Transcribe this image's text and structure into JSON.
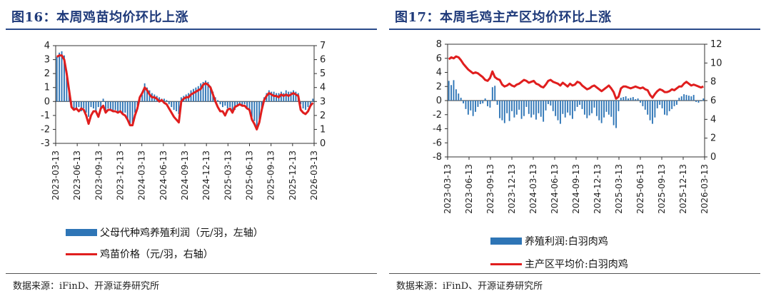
{
  "colors": {
    "title": "#1f3a7a",
    "bar": "#2e75b6",
    "line": "#e01e1e",
    "axis": "#333333"
  },
  "panels": [
    {
      "title": "图16：本周鸡苗均价环比上涨",
      "source": "数据来源：iFinD、开源证券研究所",
      "legend": [
        {
          "label": "父母代种鸡养殖利润（元/羽，左轴）",
          "kind": "bar"
        },
        {
          "label": "鸡苗价格（元/羽，右轴）",
          "kind": "line"
        }
      ]
    },
    {
      "title": "图17：本周毛鸡主产区均价环比上涨",
      "source": "数据来源：iFinD、开源证券研究所",
      "legend": [
        {
          "label": "养殖利润:白羽肉鸡",
          "kind": "bar"
        },
        {
          "label": "主产区平均价:白羽肉鸡",
          "kind": "line"
        }
      ]
    }
  ],
  "chart_data": [
    {
      "type": "bar+line",
      "title": "本周鸡苗均价环比上涨",
      "x_labels": [
        "2023-03-13",
        "2023-06-13",
        "2023-09-13",
        "2023-12-13",
        "2024-03-13",
        "2024-06-13",
        "2024-09-13",
        "2024-12-13",
        "2025-03-13",
        "2025-06-13",
        "2025-09-13",
        "2025-12-13",
        "2026-03-13"
      ],
      "left_axis": {
        "ylim": [
          -3,
          4
        ],
        "ticks": [
          -3,
          -2,
          -1,
          0,
          1,
          2,
          3,
          4
        ]
      },
      "right_axis": {
        "ylim": [
          0,
          7
        ],
        "ticks": [
          0,
          1,
          2,
          3,
          4,
          5,
          6,
          7
        ]
      },
      "series": [
        {
          "name": "父母代种鸡养殖利润（元/羽，左轴）",
          "kind": "bar",
          "axis": "left",
          "values": [
            3.2,
            3.5,
            3.6,
            3.3,
            2.2,
            0.8,
            -0.3,
            -0.5,
            -0.6,
            -0.4,
            -0.7,
            -0.5,
            -0.8,
            -1.1,
            -0.4,
            -0.5,
            -0.7,
            -0.4,
            -0.6,
            0.2,
            -0.8,
            -0.5,
            -0.6,
            -0.7,
            -0.6,
            -0.8,
            -0.7,
            -0.9,
            -0.8,
            -1.3,
            -1.6,
            -1.6,
            -0.8,
            -0.3,
            0.3,
            0.5,
            1.3,
            1.0,
            0.8,
            0.6,
            0.5,
            0.4,
            0.3,
            0.2,
            0.2,
            0.1,
            -0.2,
            -0.4,
            -0.6,
            -0.7,
            -0.9,
            0.3,
            0.4,
            0.5,
            0.6,
            0.8,
            0.9,
            1.0,
            1.1,
            1.3,
            1.4,
            1.5,
            1.4,
            1.1,
            0.7,
            0.3,
            0.1,
            -0.2,
            -0.4,
            -0.3,
            -0.5,
            -0.4,
            -0.8,
            -0.6,
            -0.3,
            -0.2,
            -0.3,
            -0.2,
            -0.5,
            -0.6,
            -1.1,
            -1.4,
            -1.9,
            -1.3,
            -0.5,
            0.3,
            0.6,
            0.8,
            0.7,
            0.7,
            0.6,
            0.6,
            0.7,
            0.6,
            0.8,
            0.7,
            0.7,
            0.8,
            0.7,
            0.6,
            -0.2,
            -0.5,
            -0.6,
            -0.4,
            -0.3,
            0.2
          ]
        },
        {
          "name": "鸡苗价格（元/羽，右轴）",
          "kind": "line",
          "axis": "right",
          "values": [
            6.2,
            6.3,
            6.3,
            6.0,
            5.0,
            3.8,
            2.6,
            2.4,
            2.5,
            2.3,
            2.5,
            2.4,
            2.0,
            1.4,
            2.0,
            2.3,
            2.3,
            1.9,
            2.5,
            2.7,
            2.2,
            2.4,
            2.4,
            2.3,
            2.3,
            2.2,
            2.3,
            2.1,
            2.0,
            1.7,
            1.3,
            1.3,
            2.0,
            2.5,
            3.3,
            3.6,
            4.0,
            3.8,
            3.5,
            3.3,
            3.3,
            3.2,
            3.0,
            3.1,
            2.9,
            2.8,
            2.5,
            2.2,
            1.9,
            1.7,
            1.5,
            3.0,
            3.2,
            3.3,
            3.3,
            3.5,
            3.6,
            3.7,
            3.8,
            3.9,
            4.2,
            4.3,
            4.2,
            4.0,
            3.5,
            3.0,
            2.6,
            2.3,
            2.3,
            2.0,
            2.4,
            2.5,
            2.2,
            2.6,
            2.7,
            2.8,
            2.7,
            2.7,
            2.5,
            2.4,
            1.7,
            1.4,
            1.0,
            1.5,
            2.4,
            3.1,
            3.4,
            3.6,
            3.5,
            3.4,
            3.4,
            3.3,
            3.5,
            3.4,
            3.5,
            3.4,
            3.5,
            3.6,
            3.5,
            3.4,
            2.4,
            2.2,
            2.1,
            2.3,
            2.7,
            2.9
          ]
        }
      ]
    },
    {
      "type": "bar+line",
      "title": "本周毛鸡主产区均价环比上涨",
      "x_labels": [
        "2023-03-13",
        "2023-06-13",
        "2023-09-13",
        "2023-12-13",
        "2024-03-13",
        "2024-06-13",
        "2024-09-13",
        "2024-12-13",
        "2025-03-13",
        "2025-06-13",
        "2025-09-13",
        "2025-12-13",
        "2026-03-13"
      ],
      "left_axis": {
        "ylim": [
          -8,
          8
        ],
        "ticks": [
          -8,
          -6,
          -4,
          -2,
          0,
          2,
          4,
          6,
          8
        ]
      },
      "right_axis": {
        "ylim": [
          0,
          12
        ],
        "ticks": [
          0,
          2,
          4,
          6,
          8,
          10,
          12
        ]
      },
      "series": [
        {
          "name": "养殖利润:白羽肉鸡",
          "kind": "bar",
          "axis": "left",
          "values": [
            2.8,
            2.2,
            2.9,
            1.6,
            1.0,
            0.4,
            -0.4,
            -1.2,
            -2.0,
            -1.4,
            -2.2,
            -1.6,
            -0.9,
            -0.5,
            -0.4,
            0.3,
            -0.8,
            -1.0,
            1.9,
            2.1,
            -0.6,
            -2.5,
            -2.8,
            -3.2,
            -1.8,
            -2.9,
            -1.5,
            -2.4,
            -2.0,
            -1.3,
            -2.6,
            -2.2,
            -0.9,
            -1.9,
            -2.4,
            -2.0,
            -2.7,
            -1.8,
            -2.3,
            -3.0,
            -1.4,
            -0.5,
            -0.7,
            -1.5,
            -2.2,
            -2.8,
            -3.3,
            -1.9,
            -2.4,
            -1.7,
            -2.1,
            -2.6,
            -1.5,
            -0.9,
            -0.6,
            -1.2,
            -2.0,
            -2.5,
            -2.1,
            -1.8,
            -1.0,
            -2.2,
            -2.8,
            -3.2,
            -2.4,
            -1.6,
            -2.0,
            -2.3,
            -3.5,
            -3.9,
            -1.5,
            0.4,
            0.5,
            0.6,
            0.3,
            0.4,
            0.5,
            0.2,
            0.3,
            -0.3,
            -0.8,
            -1.3,
            -2.0,
            -2.8,
            -3.3,
            -2.4,
            -1.1,
            -0.6,
            -1.1,
            -2.0,
            -2.1,
            -1.5,
            -1.2,
            -0.8,
            -0.6,
            0.4,
            0.6,
            0.9,
            0.8,
            0.7,
            0.6,
            0.8,
            -0.2,
            -0.3,
            -0.1,
            0.3
          ]
        },
        {
          "name": "主产区平均价:白羽肉鸡",
          "kind": "line",
          "axis": "right",
          "values": [
            10.4,
            10.6,
            10.5,
            10.7,
            10.6,
            10.3,
            9.9,
            9.6,
            9.3,
            9.1,
            8.9,
            9.0,
            8.9,
            8.7,
            8.5,
            8.2,
            8.1,
            8.4,
            9.1,
            8.5,
            8.3,
            8.2,
            7.7,
            7.5,
            7.6,
            7.8,
            7.6,
            7.5,
            7.7,
            7.8,
            8.0,
            8.2,
            8.1,
            7.9,
            8.0,
            8.1,
            7.8,
            7.7,
            7.5,
            7.4,
            7.7,
            8.1,
            8.2,
            8.0,
            7.9,
            7.8,
            7.6,
            7.9,
            7.7,
            7.5,
            7.8,
            7.6,
            7.7,
            8.0,
            7.9,
            7.6,
            7.4,
            7.2,
            7.3,
            7.5,
            7.6,
            7.4,
            7.2,
            7.0,
            7.2,
            7.4,
            7.6,
            7.3,
            6.9,
            6.2,
            6.4,
            7.3,
            7.5,
            7.5,
            7.4,
            7.3,
            7.4,
            7.5,
            7.4,
            7.3,
            7.4,
            7.2,
            7.1,
            6.6,
            6.3,
            6.7,
            7.0,
            7.2,
            7.1,
            6.9,
            6.9,
            7.0,
            7.2,
            7.1,
            7.3,
            7.5,
            7.5,
            7.8,
            8.0,
            7.8,
            7.6,
            7.7,
            7.6,
            7.5,
            7.4,
            7.5
          ]
        }
      ]
    }
  ]
}
